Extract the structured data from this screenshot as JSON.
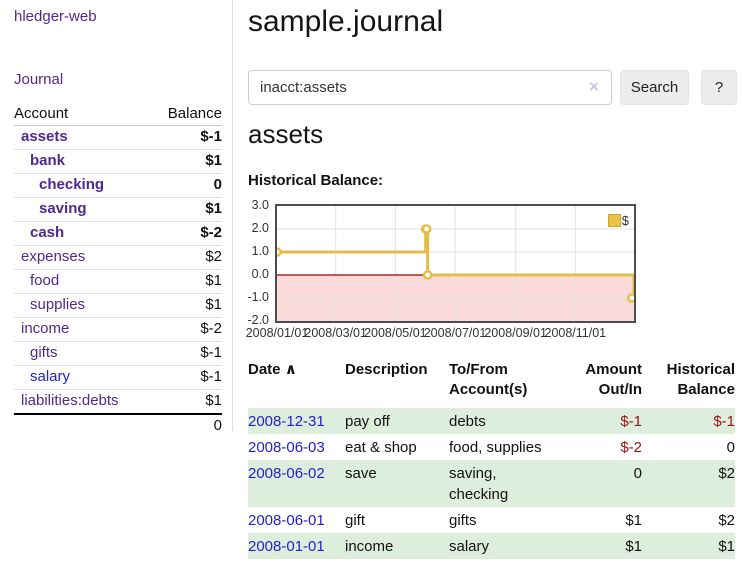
{
  "app": {
    "title": "hledger-web",
    "nav_journal": "Journal"
  },
  "sidebar": {
    "headers": {
      "account": "Account",
      "balance": "Balance"
    },
    "rows": [
      {
        "account": "assets",
        "balance": "$-1",
        "indent": 1,
        "bold": true,
        "negative": "strong"
      },
      {
        "account": "bank",
        "balance": "$1",
        "indent": 2,
        "bold": true,
        "negative": "no"
      },
      {
        "account": "checking",
        "balance": "0",
        "indent": 3,
        "bold": true,
        "negative": "no"
      },
      {
        "account": "saving",
        "balance": "$1",
        "indent": 3,
        "bold": true,
        "negative": "no"
      },
      {
        "account": "cash",
        "balance": "$-2",
        "indent": 2,
        "bold": true,
        "negative": "strong"
      },
      {
        "account": "expenses",
        "balance": "$2",
        "indent": 1,
        "bold": false,
        "negative": "no"
      },
      {
        "account": "food",
        "balance": "$1",
        "indent": 2,
        "bold": false,
        "negative": "no"
      },
      {
        "account": "supplies",
        "balance": "$1",
        "indent": 2,
        "bold": false,
        "negative": "no"
      },
      {
        "account": "income",
        "balance": "$-2",
        "indent": 1,
        "bold": false,
        "negative": "muted"
      },
      {
        "account": "gifts",
        "balance": "$-1",
        "indent": 2,
        "bold": false,
        "negative": "muted"
      },
      {
        "account": "salary",
        "balance": "$-1",
        "indent": 2,
        "bold": false,
        "negative": "muted",
        "link_color": "blue"
      },
      {
        "account": "liabilities:debts",
        "balance": "$1",
        "indent": 1,
        "bold": false,
        "negative": "no"
      }
    ],
    "total": "0"
  },
  "header": {
    "title": "sample.journal"
  },
  "search": {
    "value": "inacct:assets",
    "clear_icon": "×",
    "search_button": "Search",
    "help_button": "?"
  },
  "account_page": {
    "title": "assets",
    "chart_label": "Historical Balance:"
  },
  "chart_data": {
    "type": "line",
    "step": true,
    "title": "Historical Balance",
    "legend": "$",
    "legend_position": "top-right",
    "grid": true,
    "xlim": [
      "2008-01-01",
      "2008-12-31"
    ],
    "ylim": [
      -2,
      3
    ],
    "y_ticks": [
      {
        "value": 3,
        "label": "3.0"
      },
      {
        "value": 2,
        "label": "2.0"
      },
      {
        "value": 1,
        "label": "1.0"
      },
      {
        "value": 0,
        "label": "0.0"
      },
      {
        "value": -1,
        "label": "-1.0"
      },
      {
        "value": -2,
        "label": "-2.0"
      }
    ],
    "x_ticks": [
      {
        "date": "2008-01-01",
        "label": "2008/01/01"
      },
      {
        "date": "2008-03-01",
        "label": "2008/03/01"
      },
      {
        "date": "2008-05-01",
        "label": "2008/05/01"
      },
      {
        "date": "2008-07-01",
        "label": "2008/07/01"
      },
      {
        "date": "2008-09-01",
        "label": "2008/09/01"
      },
      {
        "date": "2008-11-01",
        "label": "2008/11/01"
      }
    ],
    "series": [
      {
        "name": "$",
        "color": "#e3bd45",
        "points": [
          {
            "date": "2008-01-01",
            "value": 1
          },
          {
            "date": "2008-06-01",
            "value": 2
          },
          {
            "date": "2008-06-02",
            "value": 2
          },
          {
            "date": "2008-06-03",
            "value": 0
          },
          {
            "date": "2008-12-31",
            "value": -1
          }
        ]
      }
    ],
    "negative_region_color": "#fbdada",
    "zero_line_color": "#a40000",
    "grid_color": "#e2e2e2"
  },
  "register": {
    "headers": {
      "date": "Date",
      "sort_icon": "∧",
      "description": "Description",
      "accounts": "To/From Account(s)",
      "amount": "Amount Out/In",
      "balance": "Historical Balance"
    },
    "rows": [
      {
        "date": "2008-12-31",
        "description": "pay off",
        "accounts": [
          "debts"
        ],
        "amount": "$-1",
        "amount_negative": true,
        "balance": "$-1",
        "balance_negative": true,
        "highlight": true
      },
      {
        "date": "2008-06-03",
        "description": "eat & shop",
        "accounts": [
          "food, supplies"
        ],
        "amount": "$-2",
        "amount_negative": true,
        "balance": "0",
        "balance_negative": false,
        "highlight": false
      },
      {
        "date": "2008-06-02",
        "description": "save",
        "accounts": [
          "saving,",
          "checking"
        ],
        "amount": "0",
        "amount_negative": false,
        "balance": "$2",
        "balance_negative": false,
        "highlight": true
      },
      {
        "date": "2008-06-01",
        "description": "gift",
        "accounts": [
          "gifts"
        ],
        "amount": "$1",
        "amount_negative": false,
        "balance": "$2",
        "balance_negative": false,
        "highlight": false
      },
      {
        "date": "2008-01-01",
        "description": "income",
        "accounts": [
          "salary"
        ],
        "amount": "$1",
        "amount_negative": false,
        "balance": "$1",
        "balance_negative": false,
        "highlight": true
      }
    ]
  }
}
